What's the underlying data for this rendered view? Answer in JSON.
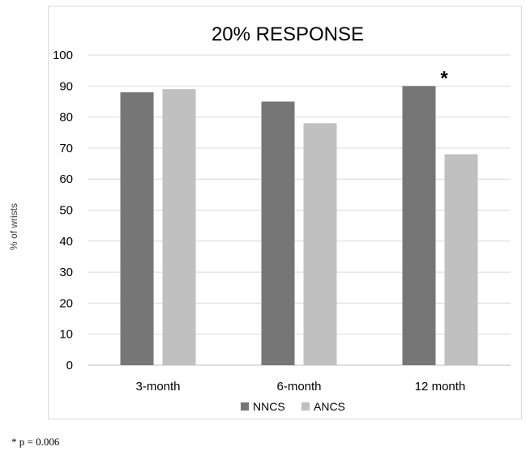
{
  "chart_data": {
    "type": "bar",
    "title": "20% RESPONSE",
    "xlabel": "",
    "ylabel": "% of wrists",
    "ylim": [
      0,
      100
    ],
    "yticks": [
      0,
      10,
      20,
      30,
      40,
      50,
      60,
      70,
      80,
      90,
      100
    ],
    "categories": [
      "3-month",
      "6-month",
      "12 month"
    ],
    "series": [
      {
        "name": "NNCS",
        "color": "#767676",
        "values": [
          88,
          85,
          90
        ]
      },
      {
        "name": "ANCS",
        "color": "#c0c0c0",
        "values": [
          89,
          78,
          68
        ]
      }
    ],
    "grid": true,
    "legend": "bottom-center",
    "annotations": [
      {
        "text": "*",
        "category": "12 month",
        "series": "NNCS"
      }
    ]
  },
  "footnote": "* p = 0.006"
}
